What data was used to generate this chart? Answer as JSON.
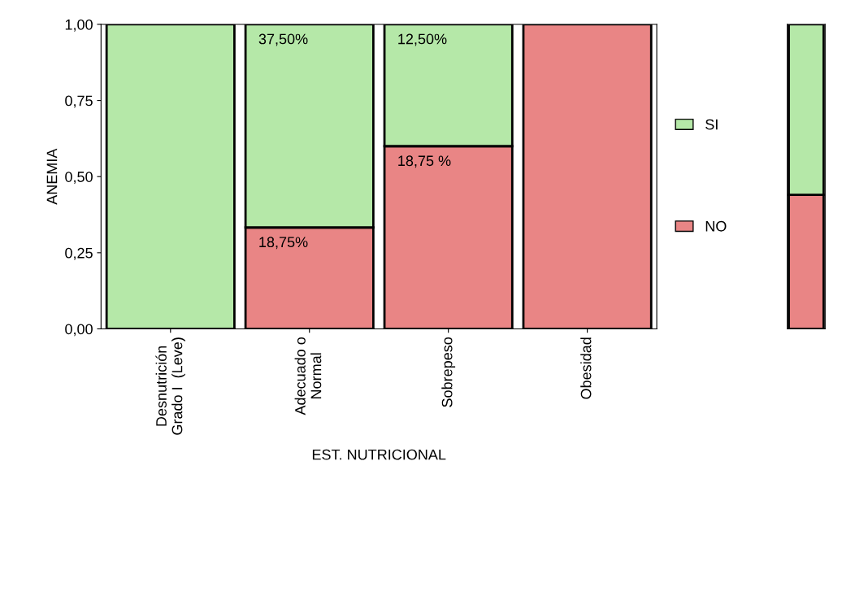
{
  "chart_data": [
    {
      "type": "bar",
      "stacked": true,
      "xlabel": "EST. NUTRICIONAL",
      "ylabel": "ANEMIA",
      "categories": [
        "Desnutrición\nGrado I  (Leve)",
        "Adecuado o\nNormal",
        "Sobrepeso",
        "Obesidad"
      ],
      "series": [
        {
          "name": "NO",
          "color": "#e98585",
          "values": [
            0,
            0.333,
            0.6,
            1
          ]
        },
        {
          "name": "SI",
          "color": "#b5e8a8",
          "values": [
            1,
            0.667,
            0.4,
            0
          ]
        }
      ],
      "ylim": [
        0,
        1
      ],
      "yticks": [
        {
          "value": 0,
          "label": "0,00"
        },
        {
          "value": 0.25,
          "label": "0,25"
        },
        {
          "value": 0.5,
          "label": "0,50"
        },
        {
          "value": 0.75,
          "label": "0,75"
        },
        {
          "value": 1,
          "label": "1,00"
        }
      ],
      "annotations": [
        {
          "text": "37,50%",
          "x": "Adecuado o\nNormal",
          "y": 1
        },
        {
          "text": "18,75%",
          "x": "Adecuado o\nNormal",
          "y": 0.333
        },
        {
          "text": "12,50%",
          "x": "Sobrepeso",
          "y": 1
        },
        {
          "text": "18,75 %",
          "x": "Sobrepeso",
          "y": 0.6
        }
      ],
      "grid": false,
      "legend": "right"
    },
    {
      "type": "bar",
      "stacked": true,
      "categories": [
        null
      ],
      "series": [
        {
          "color": "#e98585",
          "values": [
            0.44
          ]
        },
        {
          "color": "#b5e8a8",
          "values": [
            0.56
          ]
        }
      ],
      "ylim": [
        0,
        1
      ],
      "tick_labels": false,
      "grid": false,
      "legend": false
    }
  ]
}
